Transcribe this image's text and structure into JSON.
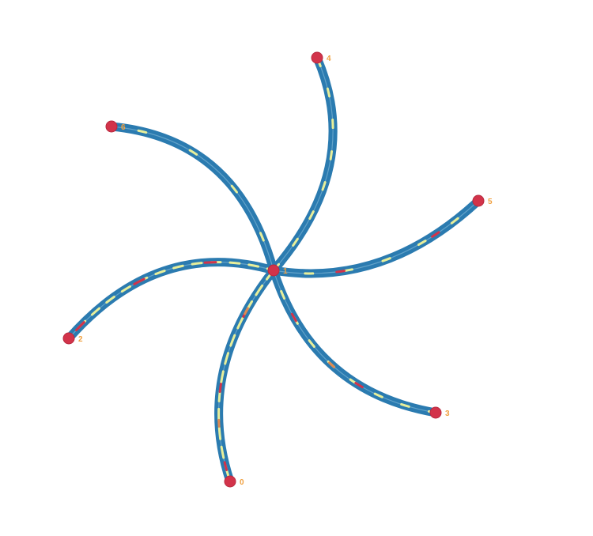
{
  "diagram": {
    "type": "graph",
    "nodes": [
      {
        "id": "0",
        "label": "0"
      },
      {
        "id": "1",
        "label": "1"
      },
      {
        "id": "2",
        "label": "2"
      },
      {
        "id": "3",
        "label": "3"
      },
      {
        "id": "4",
        "label": "4"
      },
      {
        "id": "5",
        "label": "5"
      },
      {
        "id": "6",
        "label": "6"
      }
    ],
    "edges": [
      {
        "source": "1",
        "target": "0"
      },
      {
        "source": "1",
        "target": "2"
      },
      {
        "source": "1",
        "target": "3"
      },
      {
        "source": "1",
        "target": "4"
      },
      {
        "source": "1",
        "target": "5"
      },
      {
        "source": "1",
        "target": "6"
      }
    ],
    "colors": {
      "edge": "#2b7bb0",
      "edge_highlight": "#8fc3df",
      "flow_light": "#e8ef9a",
      "flow_red": "#d2334a",
      "flow_orange": "#e08a50",
      "node": "#d2334a",
      "label": "#f0a040"
    }
  }
}
